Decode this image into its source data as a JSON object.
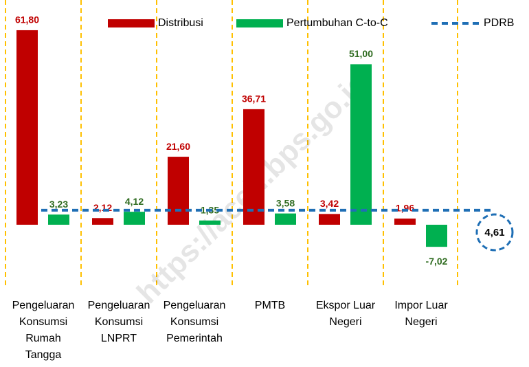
{
  "chart_data": {
    "type": "bar",
    "categories": [
      "Pengeluaran\nKonsumsi\nRumah\nTangga",
      "Pengeluaran\nKonsumsi\nLNPRT",
      "Pengeluaran\nKonsumsi\nPemerintah",
      "PMTB",
      "Ekspor Luar\nNegeri",
      "Impor Luar\nNegeri"
    ],
    "series": [
      {
        "name": "Distribusi",
        "color": "#c00000",
        "label_color": "#c00000",
        "values": [
          61.8,
          2.12,
          21.6,
          36.71,
          3.42,
          1.96
        ],
        "value_labels": [
          "61,80",
          "2,12",
          "21,60",
          "36,71",
          "3,42",
          "1,96"
        ]
      },
      {
        "name": "Pertumbuhan C-to-C",
        "color": "#00b050",
        "label_color": "#2e6b1f",
        "values": [
          3.23,
          4.12,
          1.35,
          3.58,
          51.0,
          -7.02
        ],
        "value_labels": [
          "3,23",
          "4,12",
          "1,35",
          "3,58",
          "51,00",
          "-7,02"
        ]
      }
    ],
    "reference_line": {
      "name": "PDRB",
      "value": 4.61,
      "value_label": "4,61",
      "color": "#1f6fb5"
    },
    "ylim": [
      -10,
      65
    ],
    "watermark": "https://aceh.bps.go.id"
  }
}
